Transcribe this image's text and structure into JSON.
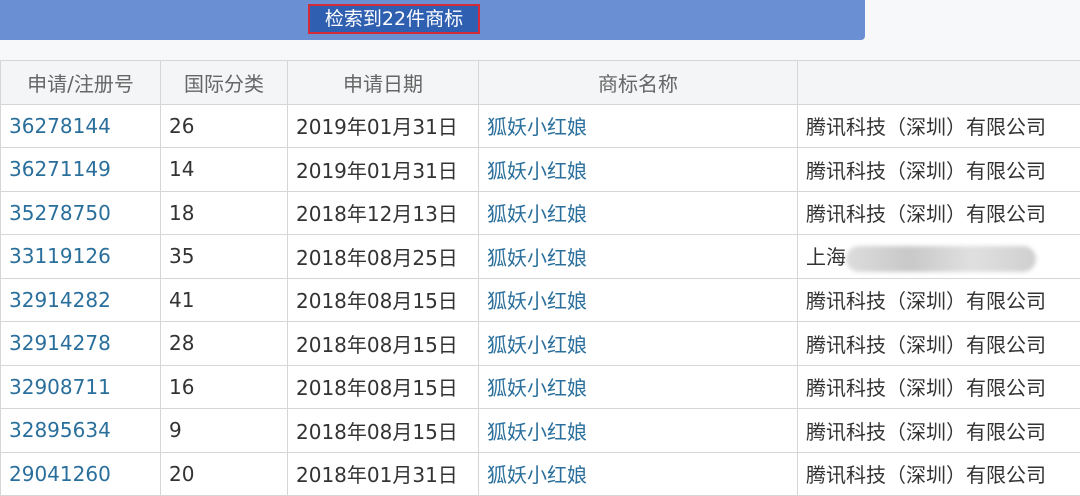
{
  "banner": {
    "result_text": "检索到22件商标",
    "color": "#6b8fd3"
  },
  "table": {
    "headers": [
      "申请/注册号",
      "国际分类",
      "申请日期",
      "商标名称",
      ""
    ],
    "rows": [
      {
        "number": "36278144",
        "class": "26",
        "date": "2019年01月31日",
        "name": "狐妖小红娘",
        "applicant": "腾讯科技（深圳）有限公司"
      },
      {
        "number": "36271149",
        "class": "14",
        "date": "2019年01月31日",
        "name": "狐妖小红娘",
        "applicant": "腾讯科技（深圳）有限公司"
      },
      {
        "number": "35278750",
        "class": "18",
        "date": "2018年12月13日",
        "name": "狐妖小红娘",
        "applicant": "腾讯科技（深圳）有限公司"
      },
      {
        "number": "33119126",
        "class": "35",
        "date": "2018年08月25日",
        "name": "狐妖小红娘",
        "applicant": "上海"
      },
      {
        "number": "32914282",
        "class": "41",
        "date": "2018年08月15日",
        "name": "狐妖小红娘",
        "applicant": "腾讯科技（深圳）有限公司"
      },
      {
        "number": "32914278",
        "class": "28",
        "date": "2018年08月15日",
        "name": "狐妖小红娘",
        "applicant": "腾讯科技（深圳）有限公司"
      },
      {
        "number": "32908711",
        "class": "16",
        "date": "2018年08月15日",
        "name": "狐妖小红娘",
        "applicant": "腾讯科技（深圳）有限公司"
      },
      {
        "number": "32895634",
        "class": "9",
        "date": "2018年08月15日",
        "name": "狐妖小红娘",
        "applicant": "腾讯科技（深圳）有限公司"
      },
      {
        "number": "29041260",
        "class": "20",
        "date": "2018年01月31日",
        "name": "狐妖小红娘",
        "applicant": "腾讯科技（深圳）有限公司"
      }
    ]
  }
}
